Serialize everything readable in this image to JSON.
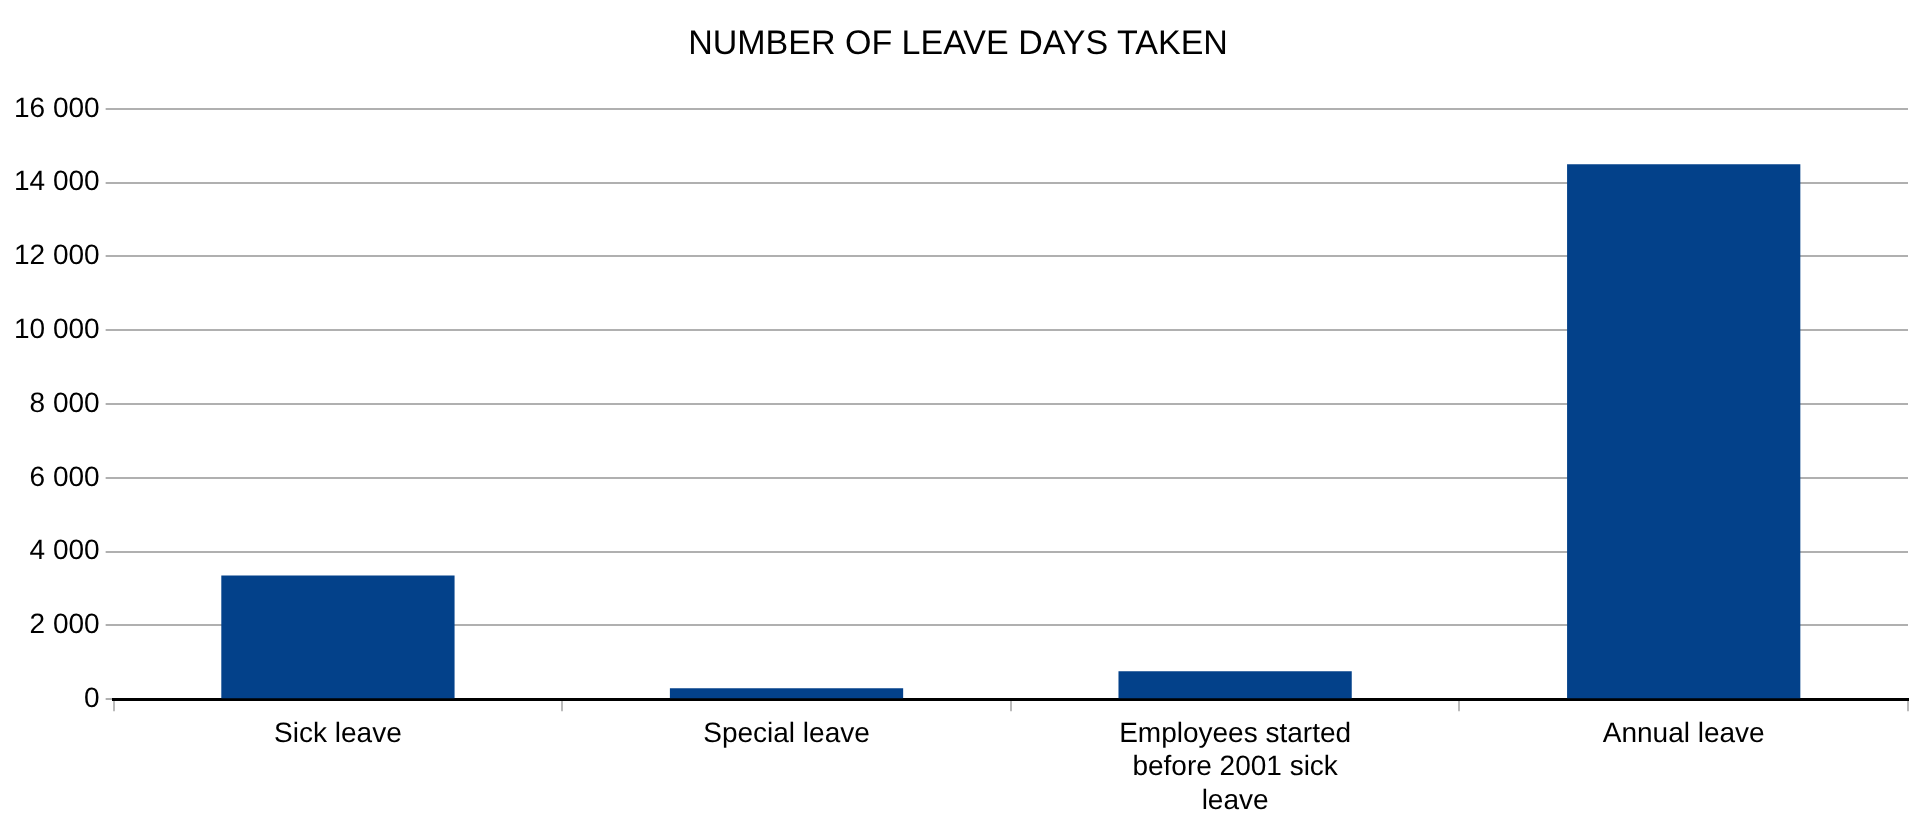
{
  "chart_data": {
    "type": "bar",
    "title": "NUMBER OF LEAVE DAYS TAKEN",
    "categories": [
      "Sick leave",
      "Special leave",
      "Employees started before 2001 sick leave",
      "Annual leave"
    ],
    "values": [
      3350,
      300,
      760,
      14500
    ],
    "color": "#03418a",
    "ylim": [
      0,
      16000
    ],
    "yticks": [
      0,
      {
        "value": 2000,
        "label": "2 000"
      },
      {
        "value": 4000,
        "label": "4 000"
      },
      {
        "value": 6000,
        "label": "6 000"
      },
      {
        "value": 8000,
        "label": "8 000"
      },
      {
        "value": 10000,
        "label": "10 000"
      },
      {
        "value": 12000,
        "label": "12 000"
      },
      {
        "value": 14000,
        "label": "14 000"
      },
      {
        "value": 16000,
        "label": "16 000"
      }
    ],
    "grid": "y",
    "legend": false
  }
}
